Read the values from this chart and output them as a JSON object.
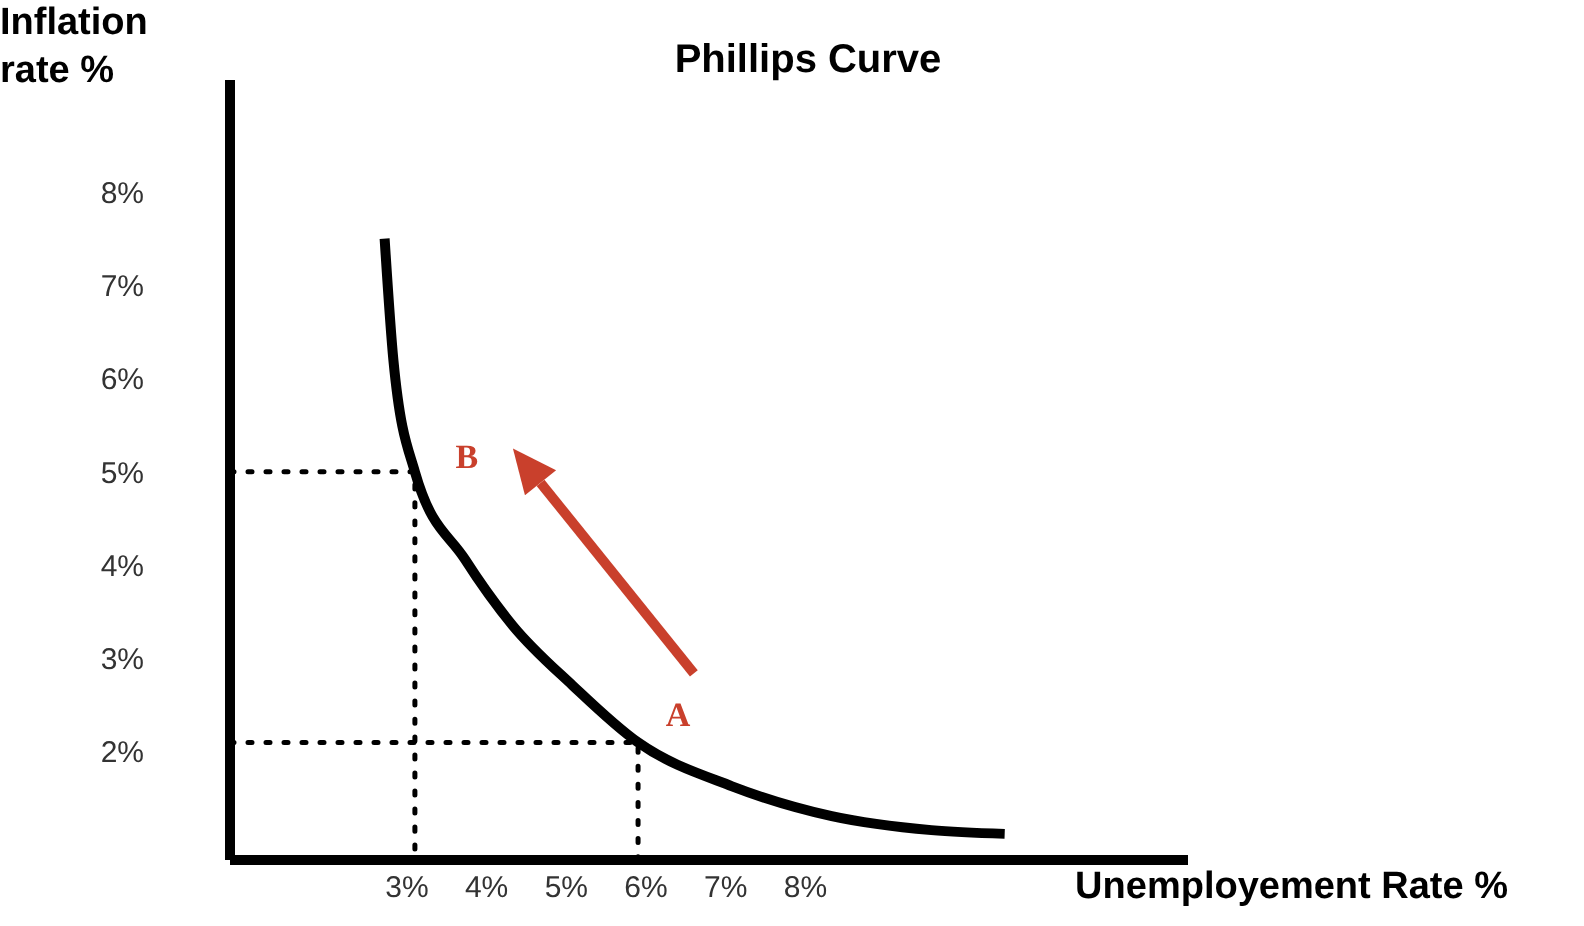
{
  "chart_data": {
    "type": "line",
    "title": "Phillips Curve",
    "xlabel": "Unemployement Rate %",
    "ylabel": "Inflation rate %",
    "xlim": [
      0.78,
      12.8
    ],
    "ylim": [
      0.84,
      9.2
    ],
    "xticks": [
      {
        "value": 3,
        "label": "3%"
      },
      {
        "value": 4,
        "label": "4%"
      },
      {
        "value": 5,
        "label": "5%"
      },
      {
        "value": 6,
        "label": "6%"
      },
      {
        "value": 7,
        "label": "7%"
      },
      {
        "value": 8,
        "label": "8%"
      }
    ],
    "yticks": [
      {
        "value": 2,
        "label": "2%"
      },
      {
        "value": 3,
        "label": "3%"
      },
      {
        "value": 4,
        "label": "4%"
      },
      {
        "value": 5,
        "label": "5%"
      },
      {
        "value": 6,
        "label": "6%"
      },
      {
        "value": 7,
        "label": "7%"
      },
      {
        "value": 8,
        "label": "8%"
      }
    ],
    "marker": "none",
    "series": [
      {
        "color": "#000000",
        "line_style": "solid",
        "x": [
          2.72,
          2.83,
          3.1,
          3.73,
          4.33,
          5.08,
          5.9,
          7.08,
          8.33,
          9.58,
          10.5
        ],
        "values": [
          7.5,
          6.2,
          5,
          4.06,
          3.35,
          2.71,
          2.1,
          1.63,
          1.31,
          1.16,
          1.12
        ]
      },
      {
        "color": "#000000",
        "line_style": "dotted",
        "x": [
          0.78,
          3.1,
          3.1
        ],
        "values": [
          5,
          5,
          0.84
        ]
      },
      {
        "color": "#000000",
        "line_style": "dotted",
        "x": [
          0.78,
          5.9,
          5.9
        ],
        "values": [
          2.1,
          2.1,
          0.84
        ]
      }
    ],
    "annotations": [
      {
        "text": "B",
        "x": 3.1,
        "y": 5
      },
      {
        "text": "A",
        "x": 5.9,
        "y": 2.1
      }
    ]
  }
}
